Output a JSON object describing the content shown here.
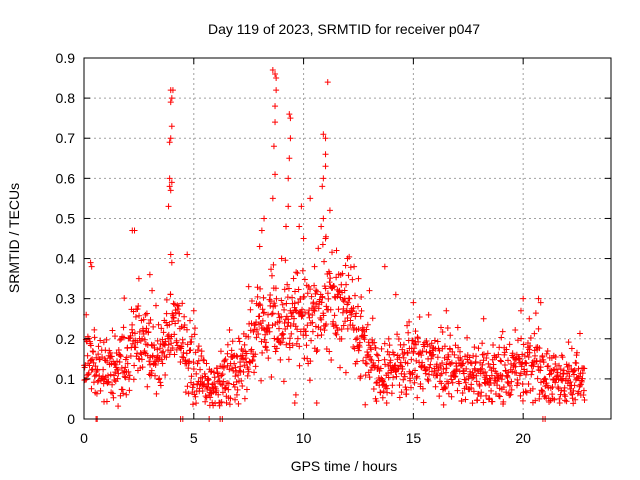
{
  "chart_data": {
    "type": "scatter",
    "title": "Day 119 of 2023, SRMTID for receiver p047",
    "xlabel": "GPS time / hours",
    "ylabel": "SRMTID / TECUs",
    "xlim": [
      0,
      24
    ],
    "ylim": [
      0,
      0.9
    ],
    "xticks": [
      0,
      5,
      10,
      15,
      20
    ],
    "xtick_labels": [
      "0",
      "5",
      "10",
      "15",
      "20"
    ],
    "yticks": [
      0,
      0.1,
      0.2,
      0.3,
      0.4,
      0.5,
      0.6,
      0.7,
      0.8,
      0.9
    ],
    "ytick_labels": [
      "0",
      "0.1",
      "0.2",
      "0.3",
      "0.4",
      "0.5",
      "0.6",
      "0.7",
      "0.8",
      "0.9"
    ],
    "grid": true,
    "marker": "+",
    "color": "#ff0000",
    "series": [
      {
        "name": "p047",
        "profile": [
          [
            0.0,
            0.15
          ],
          [
            0.5,
            0.14
          ],
          [
            1.0,
            0.12
          ],
          [
            1.5,
            0.12
          ],
          [
            2.0,
            0.15
          ],
          [
            2.5,
            0.22
          ],
          [
            3.0,
            0.18
          ],
          [
            3.5,
            0.16
          ],
          [
            4.0,
            0.22
          ],
          [
            4.5,
            0.2
          ],
          [
            5.0,
            0.12
          ],
          [
            5.5,
            0.09
          ],
          [
            6.0,
            0.08
          ],
          [
            6.5,
            0.11
          ],
          [
            7.0,
            0.13
          ],
          [
            7.5,
            0.16
          ],
          [
            8.0,
            0.22
          ],
          [
            8.5,
            0.25
          ],
          [
            9.0,
            0.22
          ],
          [
            9.5,
            0.24
          ],
          [
            10.0,
            0.25
          ],
          [
            10.5,
            0.26
          ],
          [
            11.0,
            0.28
          ],
          [
            11.5,
            0.28
          ],
          [
            12.0,
            0.28
          ],
          [
            12.5,
            0.25
          ],
          [
            13.0,
            0.15
          ],
          [
            13.5,
            0.11
          ],
          [
            14.0,
            0.12
          ],
          [
            14.5,
            0.13
          ],
          [
            15.0,
            0.15
          ],
          [
            15.5,
            0.15
          ],
          [
            16.0,
            0.15
          ],
          [
            16.5,
            0.12
          ],
          [
            17.0,
            0.12
          ],
          [
            17.5,
            0.11
          ],
          [
            18.0,
            0.11
          ],
          [
            18.5,
            0.1
          ],
          [
            19.0,
            0.11
          ],
          [
            19.5,
            0.12
          ],
          [
            20.0,
            0.13
          ],
          [
            20.5,
            0.14
          ],
          [
            21.0,
            0.1
          ],
          [
            21.5,
            0.09
          ],
          [
            22.0,
            0.1
          ],
          [
            22.5,
            0.11
          ],
          [
            22.8,
            0.09
          ]
        ],
        "spread": 0.05,
        "sample_count": 1500,
        "outliers": [
          [
            0.1,
            0.26
          ],
          [
            0.3,
            0.39
          ],
          [
            0.35,
            0.38
          ],
          [
            2.2,
            0.47
          ],
          [
            2.3,
            0.47
          ],
          [
            2.5,
            0.35
          ],
          [
            3.0,
            0.36
          ],
          [
            3.1,
            0.32
          ],
          [
            3.85,
            0.53
          ],
          [
            3.9,
            0.58
          ],
          [
            3.9,
            0.6
          ],
          [
            3.95,
            0.57
          ],
          [
            4.0,
            0.59
          ],
          [
            3.9,
            0.69
          ],
          [
            3.95,
            0.7
          ],
          [
            4.0,
            0.73
          ],
          [
            3.95,
            0.79
          ],
          [
            4.0,
            0.8
          ],
          [
            3.95,
            0.82
          ],
          [
            4.05,
            0.82
          ],
          [
            3.95,
            0.41
          ],
          [
            4.0,
            0.39
          ],
          [
            4.7,
            0.41
          ],
          [
            5.0,
            0.27
          ],
          [
            7.5,
            0.33
          ],
          [
            8.0,
            0.43
          ],
          [
            8.1,
            0.47
          ],
          [
            8.2,
            0.5
          ],
          [
            8.6,
            0.55
          ],
          [
            8.7,
            0.61
          ],
          [
            8.65,
            0.68
          ],
          [
            8.7,
            0.74
          ],
          [
            8.7,
            0.78
          ],
          [
            8.75,
            0.82
          ],
          [
            8.7,
            0.86
          ],
          [
            8.6,
            0.87
          ],
          [
            8.75,
            0.85
          ],
          [
            9.2,
            0.48
          ],
          [
            9.3,
            0.53
          ],
          [
            9.3,
            0.6
          ],
          [
            9.35,
            0.65
          ],
          [
            9.4,
            0.7
          ],
          [
            9.35,
            0.76
          ],
          [
            9.4,
            0.75
          ],
          [
            9.0,
            0.4
          ],
          [
            9.8,
            0.48
          ],
          [
            9.9,
            0.53
          ],
          [
            10.0,
            0.45
          ],
          [
            10.3,
            0.55
          ],
          [
            10.5,
            0.38
          ],
          [
            10.8,
            0.48
          ],
          [
            10.9,
            0.5
          ],
          [
            10.85,
            0.58
          ],
          [
            10.9,
            0.6
          ],
          [
            11.0,
            0.63
          ],
          [
            11.0,
            0.66
          ],
          [
            10.9,
            0.71
          ],
          [
            11.0,
            0.7
          ],
          [
            11.1,
            0.84
          ],
          [
            11.2,
            0.52
          ],
          [
            11.0,
            0.45
          ],
          [
            11.5,
            0.42
          ],
          [
            12.0,
            0.4
          ],
          [
            12.3,
            0.38
          ],
          [
            12.5,
            0.35
          ],
          [
            13.7,
            0.38
          ],
          [
            13.0,
            0.32
          ],
          [
            14.2,
            0.31
          ],
          [
            15.0,
            0.29
          ],
          [
            16.5,
            0.27
          ],
          [
            18.2,
            0.25
          ],
          [
            19.9,
            0.27
          ],
          [
            20.0,
            0.3
          ],
          [
            20.7,
            0.3
          ],
          [
            20.8,
            0.29
          ],
          [
            9.6,
            0.04
          ],
          [
            10.6,
            0.04
          ],
          [
            9.65,
            0.06
          ]
        ],
        "zero_points": [
          0.55,
          0.6,
          4.4,
          4.5,
          5.7,
          6.2,
          6.3,
          20.9,
          21.0
        ]
      }
    ]
  }
}
